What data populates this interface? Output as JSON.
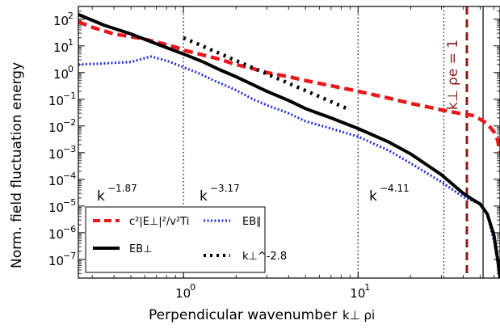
{
  "chart_data": {
    "type": "line",
    "title": "",
    "xlabel": "Perpendicular wavenumber",
    "xlabel_math": "k⊥ ρi",
    "ylabel": "Norm. field fluctuation energy",
    "xscale": "log",
    "yscale": "log",
    "xlim": [
      0.25,
      65
    ],
    "ylim": [
      2e-08,
      300
    ],
    "grid": false,
    "legend_position": "lower-left",
    "x_ticks": [
      {
        "value": 1,
        "label": "10",
        "exp": "0"
      },
      {
        "value": 10,
        "label": "10",
        "exp": "1"
      }
    ],
    "y_ticks": [
      {
        "value": 1e-07,
        "label": "10",
        "exp": "−7"
      },
      {
        "value": 1e-06,
        "label": "10",
        "exp": "−6"
      },
      {
        "value": 1e-05,
        "label": "10",
        "exp": "−5"
      },
      {
        "value": 0.0001,
        "label": "10",
        "exp": "−4"
      },
      {
        "value": 0.001,
        "label": "10",
        "exp": "−3"
      },
      {
        "value": 0.01,
        "label": "10",
        "exp": "−2"
      },
      {
        "value": 0.1,
        "label": "10",
        "exp": "−1"
      },
      {
        "value": 1,
        "label": "10",
        "exp": "0"
      },
      {
        "value": 10,
        "label": "10",
        "exp": "1"
      },
      {
        "value": 100,
        "label": "10",
        "exp": "2"
      }
    ],
    "series": [
      {
        "name": "c²|E⊥|²/v²Ti",
        "color": "#e8181c",
        "style": "dashed-thick",
        "x": [
          0.25,
          0.3,
          0.4,
          0.55,
          0.7,
          0.9,
          1.0,
          1.3,
          1.6,
          2.0,
          2.5,
          3.0,
          4.0,
          5.0,
          7.0,
          10,
          15,
          20,
          30,
          40,
          45,
          50,
          55,
          60,
          63,
          65
        ],
        "y": [
          80,
          50,
          28,
          20,
          14,
          9,
          7,
          4.5,
          3.2,
          2.0,
          1.4,
          1.0,
          0.7,
          0.5,
          0.32,
          0.2,
          0.11,
          0.07,
          0.04,
          0.028,
          0.025,
          0.018,
          0.012,
          0.006,
          0.003,
          0.001
        ]
      },
      {
        "name": "EB∥",
        "color": "#1f2ce0",
        "style": "dotted",
        "x": [
          0.25,
          0.35,
          0.5,
          0.65,
          0.8,
          1.0,
          1.2,
          1.5,
          2.0,
          2.5,
          3.0,
          4.0,
          5.0,
          7.0,
          10,
          15,
          20,
          30,
          40,
          45,
          50,
          55,
          60,
          63,
          65
        ],
        "y": [
          2.0,
          2.2,
          2.5,
          4.0,
          2.8,
          1.6,
          1.0,
          0.5,
          0.22,
          0.1,
          0.06,
          0.03,
          0.015,
          0.008,
          0.004,
          0.0012,
          0.0004,
          8e-05,
          2.2e-05,
          1.6e-05,
          1.2e-05,
          5e-06,
          5e-07,
          8e-08,
          2e-08
        ]
      },
      {
        "name": "EB⊥",
        "color": "#000000",
        "style": "solid-thick",
        "x": [
          0.25,
          0.35,
          0.5,
          0.7,
          1.0,
          1.3,
          1.6,
          2.0,
          2.5,
          3.0,
          4.0,
          5.0,
          7.0,
          10,
          15,
          20,
          30,
          40,
          45,
          50,
          55,
          60,
          63,
          65
        ],
        "y": [
          150,
          60,
          28,
          12,
          5.0,
          2.5,
          1.3,
          0.7,
          0.35,
          0.2,
          0.09,
          0.045,
          0.02,
          0.008,
          0.0025,
          0.0009,
          0.00015,
          3e-05,
          1.8e-05,
          1.2e-05,
          5e-06,
          8e-07,
          1e-07,
          2e-08
        ]
      },
      {
        "name": "k⊥^-2.8",
        "color": "#000000",
        "style": "dotted-thick",
        "x": [
          1.0,
          9.0
        ],
        "y": [
          20,
          0.04
        ]
      }
    ],
    "vlines": [
      {
        "x": 1.0,
        "color": "#000000",
        "style": "dotted"
      },
      {
        "x": 10,
        "color": "#000000",
        "style": "dotted"
      },
      {
        "x": 31,
        "color": "#000000",
        "style": "dotted"
      },
      {
        "x": 42,
        "color": "#8b1a1a",
        "style": "dashed"
      },
      {
        "x": 52,
        "color": "#000000",
        "style": "solid"
      }
    ],
    "annotations": [
      {
        "text": "k",
        "exp": "−1.87"
      },
      {
        "text": "k",
        "exp": "−3.17"
      },
      {
        "text": "k",
        "exp": "−4.11"
      },
      {
        "text": "k⊥ ρe = 1",
        "color": "#8b1a1a",
        "rotated": true
      }
    ],
    "legend": [
      {
        "label_main": "c²|E⊥|²/v²Ti",
        "color": "#e8181c",
        "style": "dashed-thick"
      },
      {
        "label_main": "EB∥",
        "color": "#1f2ce0",
        "style": "dotted"
      },
      {
        "label_main": "EB⊥",
        "color": "#000000",
        "style": "solid-thick"
      },
      {
        "label_main": "k⊥^-2.8",
        "color": "#000000",
        "style": "dotted-thick"
      }
    ]
  }
}
